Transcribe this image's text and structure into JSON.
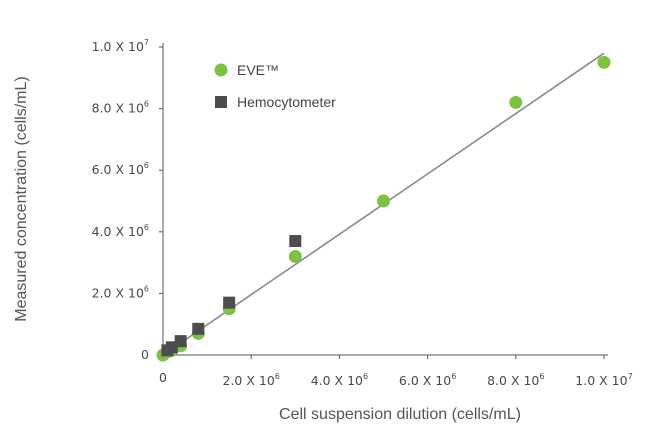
{
  "chart_data": {
    "type": "scatter",
    "xlabel": "Cell suspension dilution (cells/mL)",
    "ylabel": "Measured concentration (cells/mL)",
    "xlim": [
      0,
      10000000
    ],
    "ylim": [
      0,
      10000000
    ],
    "grid": false,
    "legend_position": "top-left",
    "x_ticks": [
      {
        "value": 0,
        "base": "0",
        "exp": ""
      },
      {
        "value": 2000000,
        "base": "2.0 X 10",
        "exp": "6"
      },
      {
        "value": 4000000,
        "base": "4.0 X 10",
        "exp": "6"
      },
      {
        "value": 6000000,
        "base": "6.0 X 10",
        "exp": "6"
      },
      {
        "value": 8000000,
        "base": "8.0 X 10",
        "exp": "6"
      },
      {
        "value": 10000000,
        "base": "1.0 X 10",
        "exp": "7"
      }
    ],
    "y_ticks": [
      {
        "value": 0,
        "base": "0",
        "exp": ""
      },
      {
        "value": 2000000,
        "base": "2.0 X 10",
        "exp": "6"
      },
      {
        "value": 4000000,
        "base": "4.0 X 10",
        "exp": "6"
      },
      {
        "value": 6000000,
        "base": "6.0 X 10",
        "exp": "6"
      },
      {
        "value": 8000000,
        "base": "8.0 X 10",
        "exp": "6"
      },
      {
        "value": 10000000,
        "base": "1.0 X 10",
        "exp": "7"
      }
    ],
    "series": [
      {
        "name": "EVE™",
        "marker": "circle",
        "color": "#7dc242",
        "points": [
          [
            0,
            0
          ],
          [
            100000,
            100000
          ],
          [
            200000,
            150000
          ],
          [
            400000,
            300000
          ],
          [
            800000,
            700000
          ],
          [
            1500000,
            1500000
          ],
          [
            3000000,
            3200000
          ],
          [
            5000000,
            5000000
          ],
          [
            8000000,
            8200000
          ],
          [
            10000000,
            9500000
          ]
        ]
      },
      {
        "name": "Hemocytometer",
        "marker": "square",
        "color": "#4d4d4f",
        "points": [
          [
            100000,
            150000
          ],
          [
            200000,
            250000
          ],
          [
            400000,
            450000
          ],
          [
            800000,
            850000
          ],
          [
            1500000,
            1700000
          ],
          [
            3000000,
            3700000
          ]
        ]
      }
    ],
    "trendline": {
      "color": "#8a8a8a",
      "from": [
        0,
        0
      ],
      "to": [
        10000000,
        9800000
      ]
    }
  }
}
